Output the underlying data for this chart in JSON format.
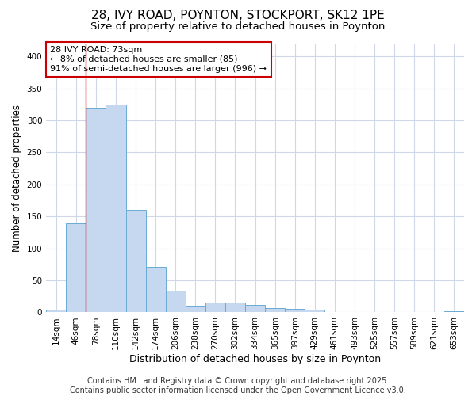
{
  "title1": "28, IVY ROAD, POYNTON, STOCKPORT, SK12 1PE",
  "title2": "Size of property relative to detached houses in Poynton",
  "xlabel": "Distribution of detached houses by size in Poynton",
  "ylabel": "Number of detached properties",
  "bar_labels": [
    "14sqm",
    "46sqm",
    "78sqm",
    "110sqm",
    "142sqm",
    "174sqm",
    "206sqm",
    "238sqm",
    "270sqm",
    "302sqm",
    "334sqm",
    "365sqm",
    "397sqm",
    "429sqm",
    "461sqm",
    "493sqm",
    "525sqm",
    "557sqm",
    "589sqm",
    "621sqm",
    "653sqm"
  ],
  "bar_values": [
    4,
    139,
    320,
    325,
    160,
    71,
    34,
    11,
    15,
    15,
    12,
    7,
    5,
    4,
    1,
    1,
    0,
    0,
    0,
    0,
    2
  ],
  "bar_color": "#c5d8f0",
  "bar_edge_color": "#6aaad4",
  "grid_color": "#d0d8e8",
  "background_color": "#ffffff",
  "vline_x": 1.5,
  "vline_color": "#cc0000",
  "annotation_text": "28 IVY ROAD: 73sqm\n← 8% of detached houses are smaller (85)\n91% of semi-detached houses are larger (996) →",
  "annotation_box_color": "#ffffff",
  "annotation_box_edge": "#cc0000",
  "ylim": [
    0,
    420
  ],
  "yticks": [
    0,
    50,
    100,
    150,
    200,
    250,
    300,
    350,
    400
  ],
  "footer": "Contains HM Land Registry data © Crown copyright and database right 2025.\nContains public sector information licensed under the Open Government Licence v3.0.",
  "footer_fontsize": 7.0,
  "title1_fontsize": 11,
  "title2_fontsize": 9.5,
  "xlabel_fontsize": 9,
  "ylabel_fontsize": 8.5,
  "tick_fontsize": 7.5,
  "annot_fontsize": 8
}
